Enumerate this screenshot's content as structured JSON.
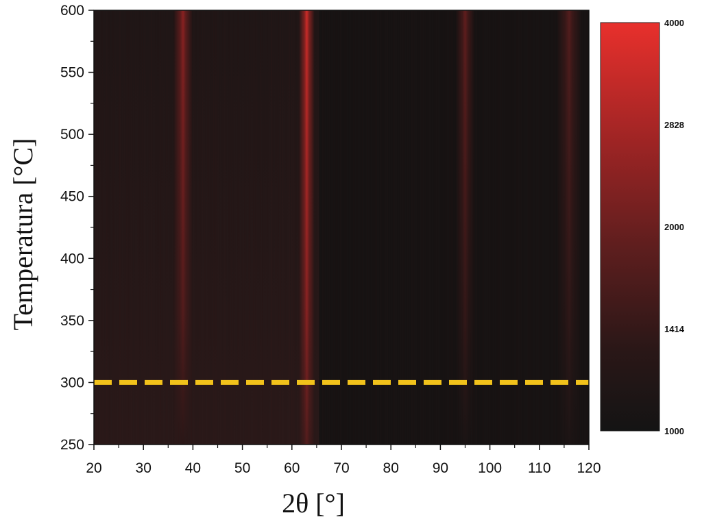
{
  "chart_data": {
    "type": "heatmap",
    "xlabel": "2θ [°]",
    "ylabel": "Temperatura [°C]",
    "xlim": [
      20,
      120
    ],
    "ylim": [
      250,
      600
    ],
    "x_ticks": [
      20,
      30,
      40,
      50,
      60,
      70,
      80,
      90,
      100,
      110,
      120
    ],
    "y_ticks": [
      250,
      300,
      350,
      400,
      450,
      500,
      550,
      600
    ],
    "colorbar": {
      "range": [
        1000,
        4000
      ],
      "ticks": [
        1000,
        1414,
        2000,
        2828,
        4000
      ],
      "color_low": "#141414",
      "color_high": "#e8302c"
    },
    "intensity_peaks": [
      {
        "two_theta": 38,
        "width": 1.2,
        "intensity_top": 2900,
        "intensity_bottom": 1600
      },
      {
        "two_theta": 63,
        "width": 1.0,
        "intensity_top": 3700,
        "intensity_bottom": 2200
      },
      {
        "two_theta": 95,
        "width": 1.2,
        "intensity_top": 2400,
        "intensity_bottom": 1200
      },
      {
        "two_theta": 116,
        "width": 1.6,
        "intensity_top": 2200,
        "intensity_bottom": 1250
      }
    ],
    "reference_line": {
      "temperature": 300,
      "color": "#f2c21b",
      "style": "dashed"
    }
  }
}
